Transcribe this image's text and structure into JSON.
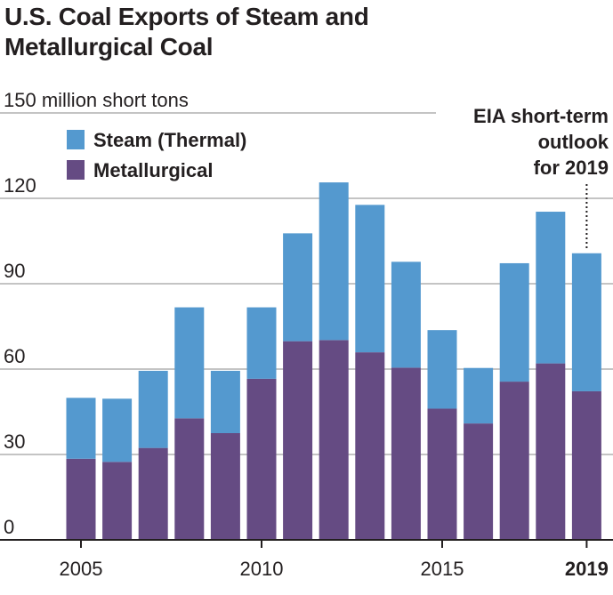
{
  "title_line1": "U.S. Coal Exports of Steam and",
  "title_line2": "Metallurgical Coal",
  "colors": {
    "steam": "#5499cf",
    "metallurgical": "#654b83",
    "grid": "#c4c4c4",
    "axis": "#231f20"
  },
  "chart_data": {
    "type": "bar",
    "stacked": true,
    "title": "U.S. Coal Exports of Steam and Metallurgical Coal",
    "units_label": "150 million short tons",
    "categories": [
      "2005",
      "2006",
      "2007",
      "2008",
      "2009",
      "2010",
      "2011",
      "2012",
      "2013",
      "2014",
      "2015",
      "2016",
      "2017",
      "2018",
      "2019"
    ],
    "series": [
      {
        "name": "Metallurgical",
        "values": [
          28.5,
          27.4,
          32.3,
          42.7,
          37.5,
          56.6,
          69.8,
          70.2,
          65.9,
          60.5,
          46.1,
          40.9,
          55.6,
          62.0,
          52.2
        ]
      },
      {
        "name": "Steam (Thermal)",
        "values": [
          21.4,
          22.2,
          27.1,
          39.0,
          21.9,
          25.1,
          37.9,
          55.4,
          51.8,
          37.2,
          27.6,
          19.5,
          41.6,
          53.3,
          48.5
        ]
      }
    ],
    "ylim": [
      0,
      150
    ],
    "yticks": [
      0,
      30,
      60,
      90,
      120
    ],
    "xtick_labels": [
      "2005",
      "2010",
      "2015",
      "2019"
    ],
    "xtick_categories": [
      "2005",
      "2010",
      "2015",
      "2019"
    ],
    "legend": [
      "Steam (Thermal)",
      "Metallurgical"
    ],
    "legend_position": "top-left",
    "grid": true,
    "annotation": {
      "lines": [
        "EIA short-term",
        "outlook",
        "for 2019"
      ],
      "category": "2019"
    }
  }
}
